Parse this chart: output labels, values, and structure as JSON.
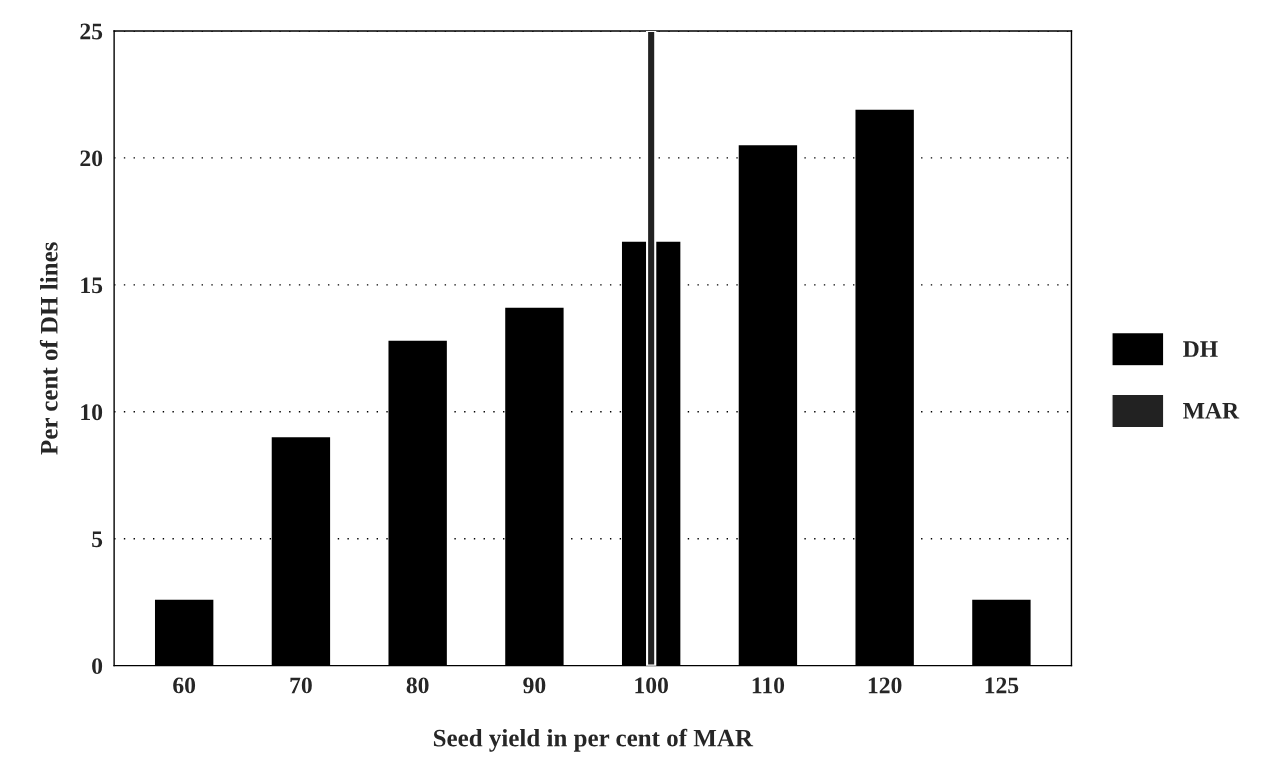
{
  "chart_data": {
    "type": "bar",
    "xlabel": "Seed yield in per cent of MAR",
    "ylabel": "Per cent of DH lines",
    "categories": [
      "60",
      "70",
      "80",
      "90",
      "100",
      "110",
      "120",
      "125"
    ],
    "series": [
      {
        "name": "DH",
        "color": "#000000",
        "values": [
          2.6,
          9.0,
          12.8,
          14.1,
          16.7,
          20.5,
          21.9,
          2.6
        ]
      },
      {
        "name": "MAR",
        "color": "#222222",
        "values": [
          null,
          null,
          null,
          null,
          25,
          null,
          null,
          null
        ]
      }
    ],
    "ylim": [
      0,
      25
    ],
    "yticks": [
      0,
      5,
      10,
      15,
      20,
      25
    ],
    "grid": "y",
    "legend": "right"
  }
}
